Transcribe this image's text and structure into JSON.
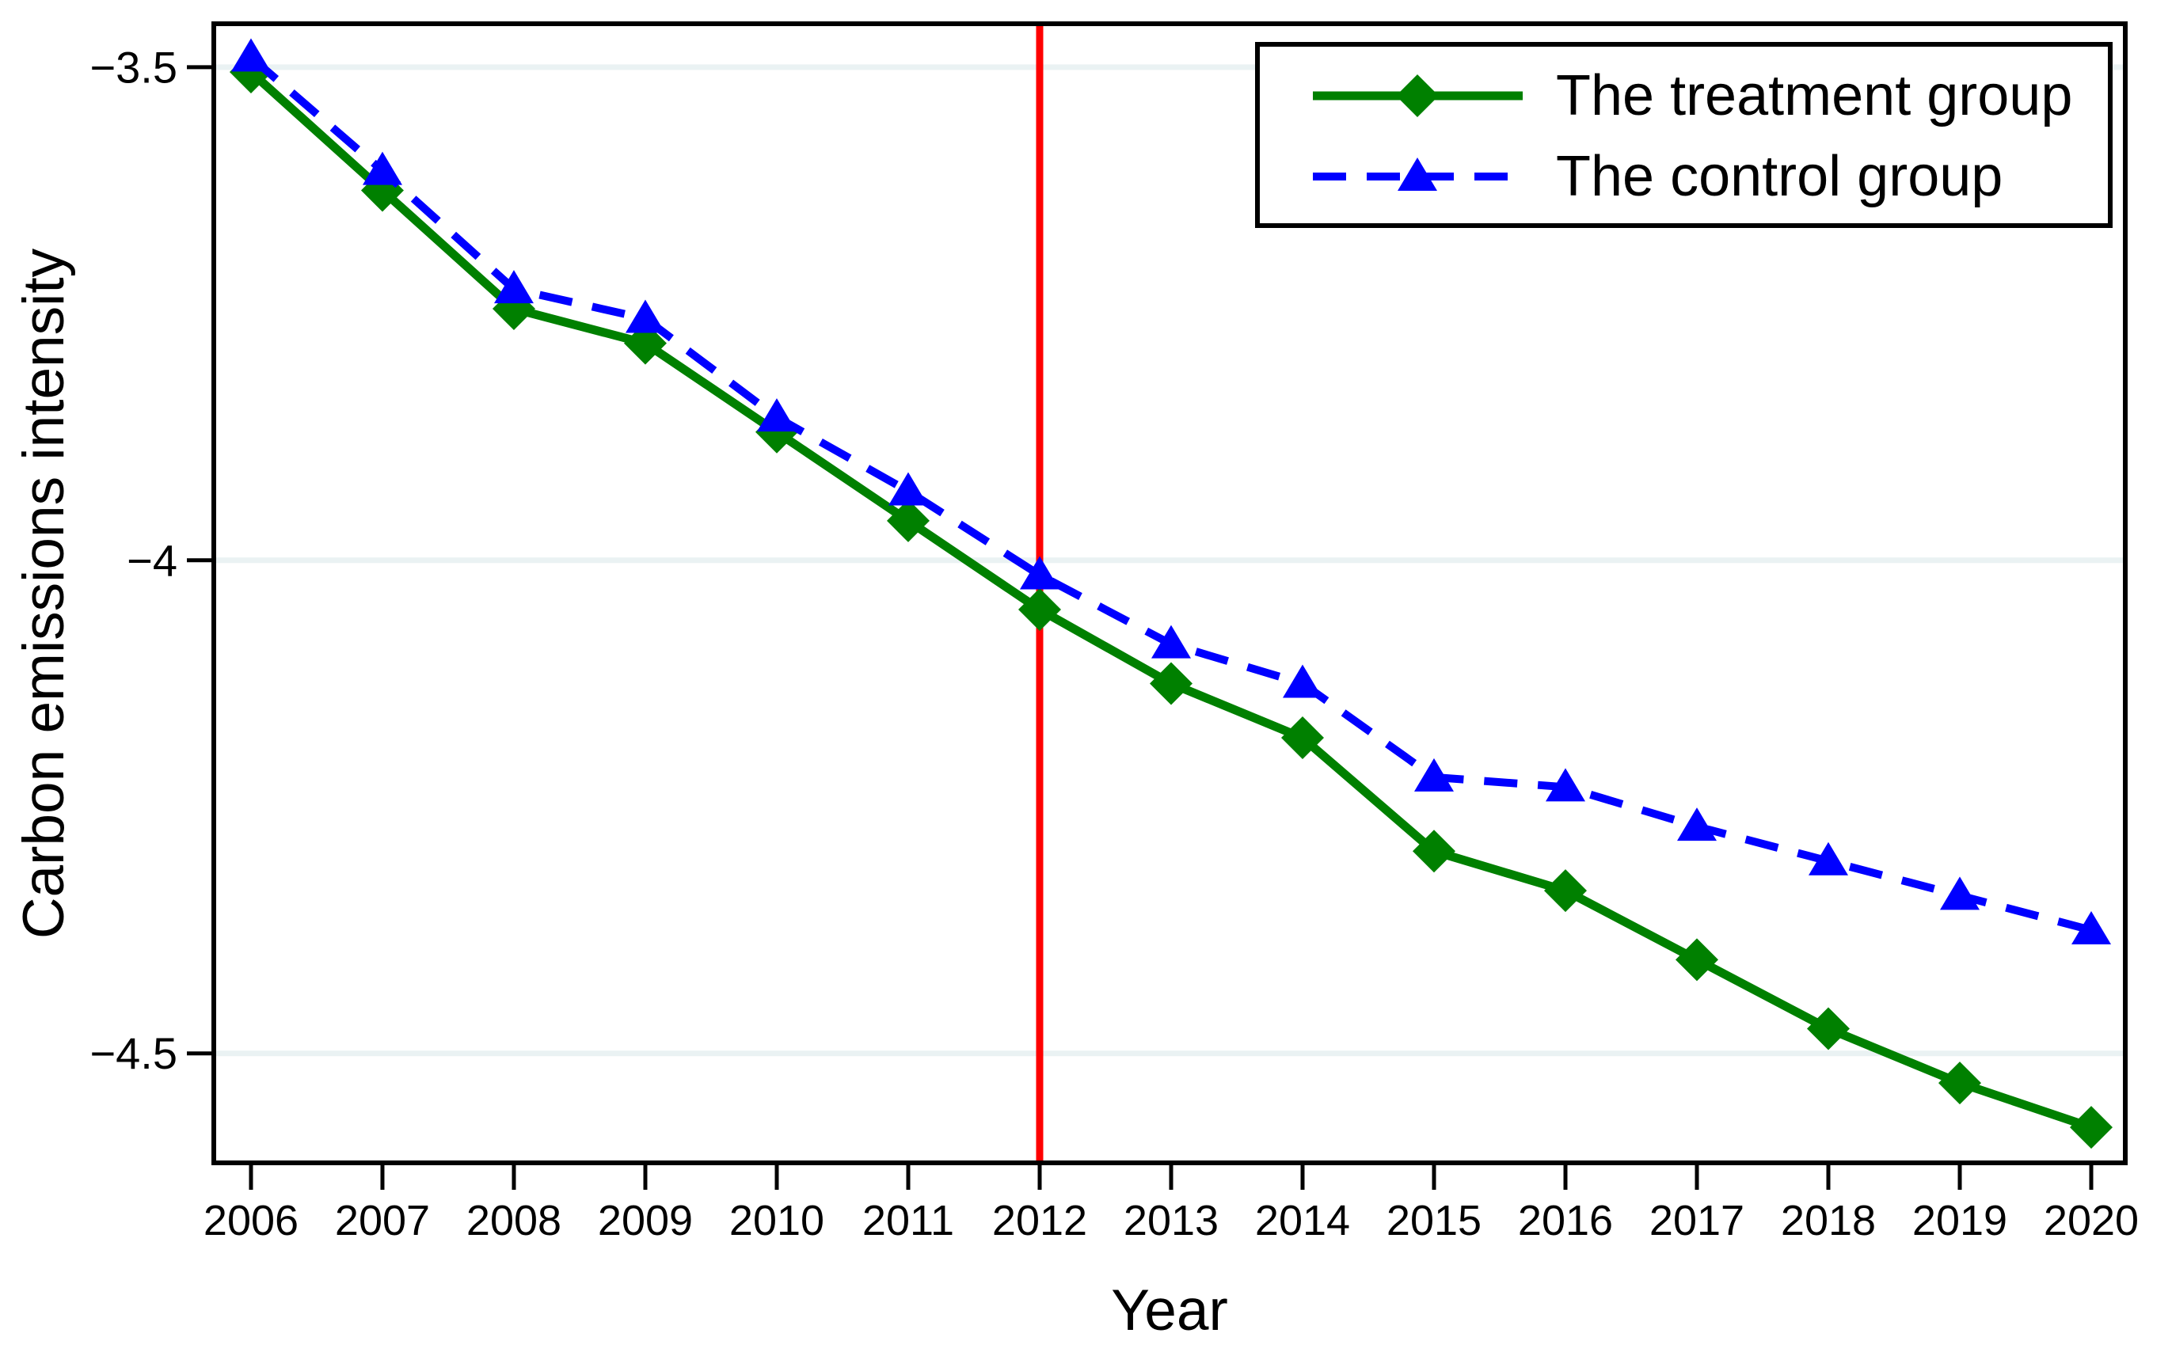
{
  "figure": {
    "background": "#ffffff",
    "border_color": "#000000"
  },
  "chart_data": {
    "type": "line",
    "title": "",
    "xlabel": "Year",
    "ylabel": "Carbon emissions intensity",
    "x": [
      2006,
      2007,
      2008,
      2009,
      2010,
      2011,
      2012,
      2013,
      2014,
      2015,
      2016,
      2017,
      2018,
      2019,
      2020
    ],
    "series": [
      {
        "name": "The treatment group",
        "color": "#008000",
        "line": "solid",
        "marker": "diamond",
        "values": [
          -3.505,
          -3.625,
          -3.745,
          -3.78,
          -3.87,
          -3.96,
          -4.05,
          -4.125,
          -4.18,
          -4.295,
          -4.335,
          -4.405,
          -4.475,
          -4.53,
          -4.575
        ]
      },
      {
        "name": "The control group",
        "color": "#0000ff",
        "line": "dashed",
        "marker": "triangle",
        "values": [
          -3.49,
          -3.605,
          -3.725,
          -3.755,
          -3.855,
          -3.93,
          -4.015,
          -4.085,
          -4.125,
          -4.22,
          -4.23,
          -4.27,
          -4.305,
          -4.34,
          -4.375
        ]
      }
    ],
    "reference_line": {
      "axis": "x",
      "value": 2012,
      "color": "#ff0000"
    },
    "x_ticks": {
      "values": [
        2006,
        2007,
        2008,
        2009,
        2010,
        2011,
        2012,
        2013,
        2014,
        2015,
        2016,
        2017,
        2018,
        2019,
        2020
      ],
      "labels": [
        "2006",
        "2007",
        "2008",
        "2009",
        "2010",
        "2011",
        "2012",
        "2013",
        "2014",
        "2015",
        "2016",
        "2017",
        "2018",
        "2019",
        "2020"
      ]
    },
    "y_ticks": {
      "values": [
        -3.5,
        -4,
        -4.5
      ],
      "labels": [
        "−3.5",
        "−4",
        "−4.5"
      ]
    },
    "xlim": [
      2005.717,
      2020.259
    ],
    "ylim": [
      -4.611,
      -3.456
    ],
    "grid": "horizontal",
    "gridline_color": "#eaf2f3",
    "axis_color": "#000000",
    "legend": {
      "position": "top-right",
      "border": true,
      "entries": [
        "The treatment group",
        "The control group"
      ]
    }
  }
}
